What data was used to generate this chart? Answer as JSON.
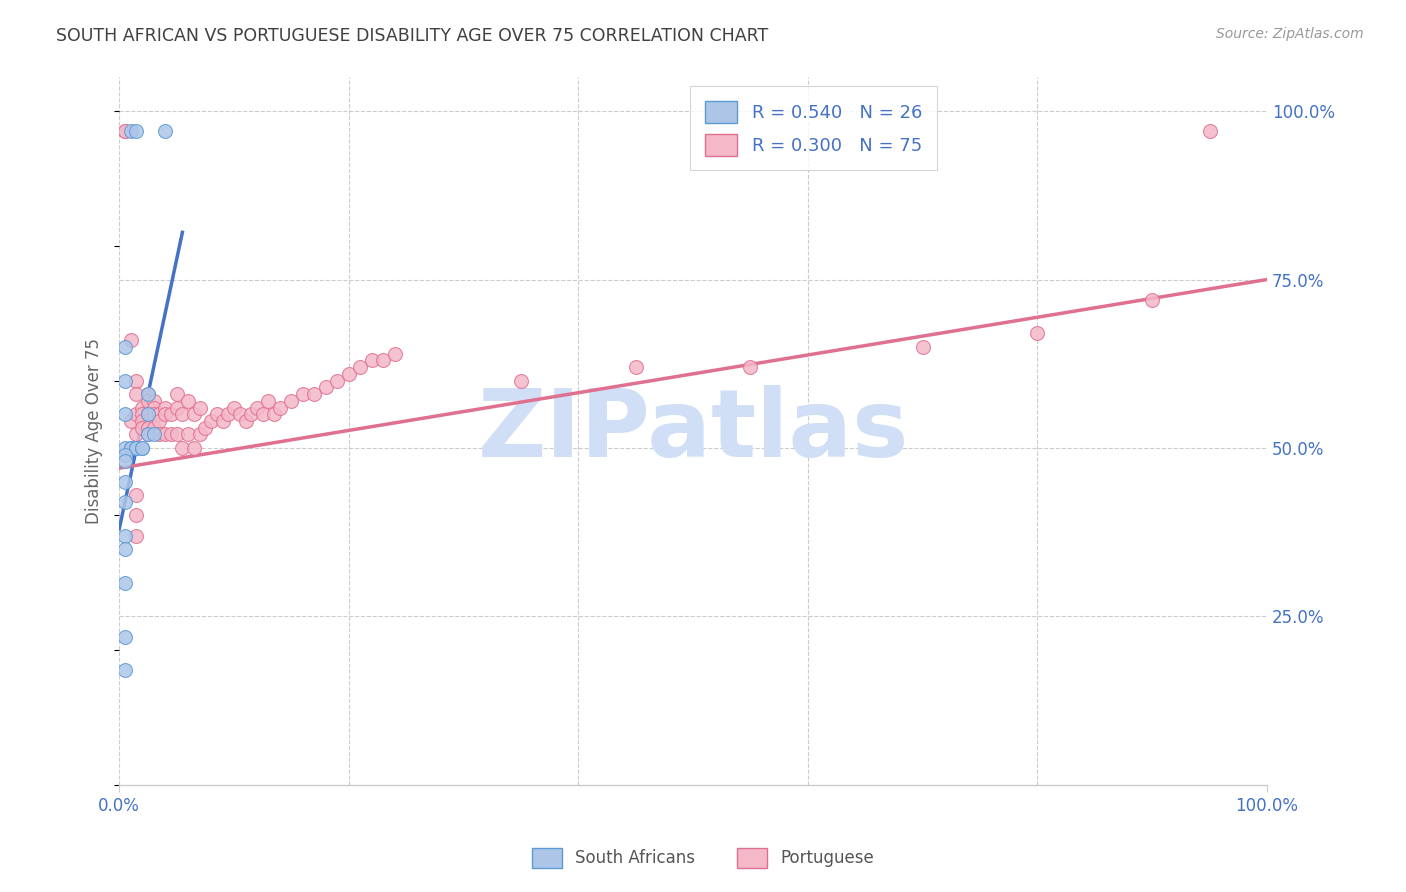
{
  "title": "SOUTH AFRICAN VS PORTUGUESE DISABILITY AGE OVER 75 CORRELATION CHART",
  "source": "Source: ZipAtlas.com",
  "ylabel": "Disability Age Over 75",
  "legend_sa": "South Africans",
  "legend_pt": "Portuguese",
  "sa_color": "#adc6e8",
  "sa_edge_color": "#5b9bd5",
  "sa_line_color": "#4472c4",
  "pt_color": "#f4b8c8",
  "pt_edge_color": "#e07090",
  "pt_line_color": "#e07090",
  "watermark_text": "ZIPatlas",
  "watermark_color": "#d0dff5",
  "title_color": "#404040",
  "axis_label_color": "#4472c4",
  "grid_color": "#cccccc",
  "sa_x": [
    0.01,
    0.015,
    0.04,
    0.005,
    0.005,
    0.025,
    0.025,
    0.005,
    0.025,
    0.03,
    0.005,
    0.01,
    0.01,
    0.015,
    0.015,
    0.02,
    0.02,
    0.005,
    0.005,
    0.005,
    0.005,
    0.005,
    0.005,
    0.005,
    0.005,
    0.005
  ],
  "sa_y": [
    0.97,
    0.97,
    0.97,
    0.65,
    0.6,
    0.58,
    0.55,
    0.55,
    0.52,
    0.52,
    0.5,
    0.5,
    0.5,
    0.5,
    0.5,
    0.5,
    0.5,
    0.49,
    0.48,
    0.45,
    0.42,
    0.37,
    0.35,
    0.3,
    0.22,
    0.17
  ],
  "pt_x": [
    0.005,
    0.005,
    0.01,
    0.01,
    0.01,
    0.015,
    0.015,
    0.015,
    0.015,
    0.02,
    0.02,
    0.02,
    0.02,
    0.025,
    0.025,
    0.025,
    0.025,
    0.025,
    0.03,
    0.03,
    0.03,
    0.03,
    0.035,
    0.035,
    0.035,
    0.04,
    0.04,
    0.04,
    0.045,
    0.045,
    0.05,
    0.05,
    0.05,
    0.055,
    0.055,
    0.06,
    0.06,
    0.065,
    0.065,
    0.07,
    0.07,
    0.075,
    0.08,
    0.085,
    0.09,
    0.095,
    0.1,
    0.105,
    0.11,
    0.115,
    0.12,
    0.125,
    0.13,
    0.135,
    0.14,
    0.15,
    0.16,
    0.17,
    0.18,
    0.19,
    0.2,
    0.21,
    0.22,
    0.23,
    0.24,
    0.015,
    0.015,
    0.015,
    0.35,
    0.45,
    0.55,
    0.7,
    0.8,
    0.9,
    0.95
  ],
  "pt_y": [
    0.97,
    0.97,
    0.66,
    0.54,
    0.5,
    0.6,
    0.58,
    0.55,
    0.52,
    0.56,
    0.55,
    0.54,
    0.53,
    0.58,
    0.57,
    0.55,
    0.53,
    0.52,
    0.57,
    0.56,
    0.55,
    0.53,
    0.55,
    0.54,
    0.52,
    0.56,
    0.55,
    0.52,
    0.55,
    0.52,
    0.58,
    0.56,
    0.52,
    0.55,
    0.5,
    0.57,
    0.52,
    0.55,
    0.5,
    0.56,
    0.52,
    0.53,
    0.54,
    0.55,
    0.54,
    0.55,
    0.56,
    0.55,
    0.54,
    0.55,
    0.56,
    0.55,
    0.57,
    0.55,
    0.56,
    0.57,
    0.58,
    0.58,
    0.59,
    0.6,
    0.61,
    0.62,
    0.63,
    0.63,
    0.64,
    0.4,
    0.37,
    0.43,
    0.6,
    0.62,
    0.62,
    0.65,
    0.67,
    0.72,
    0.97
  ],
  "sa_line_x0": 0.0,
  "sa_line_x1": 0.055,
  "sa_line_y0": 0.38,
  "sa_line_y1": 0.82,
  "pt_line_x0": 0.0,
  "pt_line_x1": 1.0,
  "pt_line_y0": 0.47,
  "pt_line_y1": 0.75,
  "xlim": [
    0.0,
    1.0
  ],
  "ylim": [
    0.0,
    1.05
  ],
  "xtick_positions": [
    0.0,
    1.0
  ],
  "xtick_labels": [
    "0.0%",
    "100.0%"
  ],
  "ytick_positions": [
    0.25,
    0.5,
    0.75,
    1.0
  ],
  "ytick_labels": [
    "25.0%",
    "50.0%",
    "75.0%",
    "100.0%"
  ]
}
